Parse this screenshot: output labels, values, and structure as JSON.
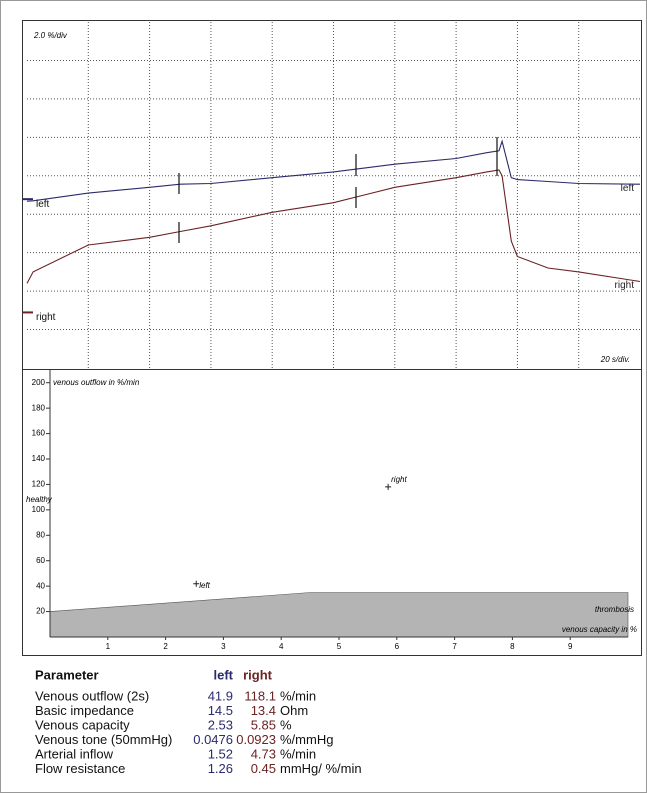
{
  "chart_data": [
    {
      "type": "line",
      "annotations": [
        "2.0 %/div",
        "20 s/div."
      ],
      "x": [
        0,
        0.1,
        1,
        2,
        2.5,
        3,
        4,
        5,
        5.5,
        6,
        7,
        7.5,
        7.7,
        7.75,
        7.9,
        8,
        8.5,
        9,
        10
      ],
      "series": [
        {
          "name": "left",
          "color": "#2b2b6b",
          "values": [
            4.34,
            4.35,
            4.55,
            4.7,
            4.78,
            4.8,
            4.95,
            5.1,
            5.2,
            5.3,
            5.45,
            5.6,
            5.65,
            5.9,
            4.95,
            4.9,
            4.85,
            4.8,
            4.78
          ]
        },
        {
          "name": "right",
          "color": "#6b2222",
          "values": [
            2.2,
            2.5,
            3.2,
            3.4,
            3.55,
            3.7,
            4.05,
            4.3,
            4.5,
            4.7,
            4.95,
            5.1,
            5.15,
            5.0,
            3.3,
            2.9,
            2.6,
            2.5,
            2.25
          ]
        }
      ],
      "xlim": [
        0,
        10
      ],
      "ylim": [
        0,
        9
      ],
      "grid": true
    },
    {
      "type": "scatter",
      "ylabel": "venous outflow in %/min",
      "xlabel": "venous capacity in %",
      "annotations": [
        "healthy"
      ],
      "area": {
        "name": "thrombosis",
        "x": [
          0,
          4.5,
          10
        ],
        "y": [
          20,
          35,
          35
        ],
        "color": "#b4b4b4"
      },
      "series": [
        {
          "name": "left",
          "color": "#2b2b6b",
          "x": [
            2.53
          ],
          "y": [
            41.9
          ]
        },
        {
          "name": "right",
          "color": "#6b2222",
          "x": [
            5.85
          ],
          "y": [
            118.1
          ]
        }
      ],
      "xlim": [
        0,
        10
      ],
      "ylim": [
        0,
        210
      ],
      "xticks": [
        1,
        2,
        3,
        4,
        5,
        6,
        7,
        8,
        9
      ],
      "yticks": [
        20,
        40,
        60,
        80,
        100,
        120,
        140,
        160,
        180,
        200
      ]
    }
  ],
  "table": {
    "header": [
      "Parameter",
      "left",
      "right"
    ],
    "rows": [
      [
        "Venous outflow (2s)",
        "41.9",
        "118.1",
        "%/min"
      ],
      [
        "Basic impedance",
        "14.5",
        "13.4",
        "Ohm"
      ],
      [
        "Venous capacity",
        "2.53",
        "5.85",
        "%"
      ],
      [
        "Venous tone (50mmHg)",
        "0.0476",
        "0.0923",
        "%/mmHg"
      ],
      [
        "Arterial inflow",
        "1.52",
        "4.73",
        "%/min"
      ],
      [
        "Flow resistance",
        "1.26",
        "0.45",
        "mmHg/ %/min"
      ]
    ]
  }
}
